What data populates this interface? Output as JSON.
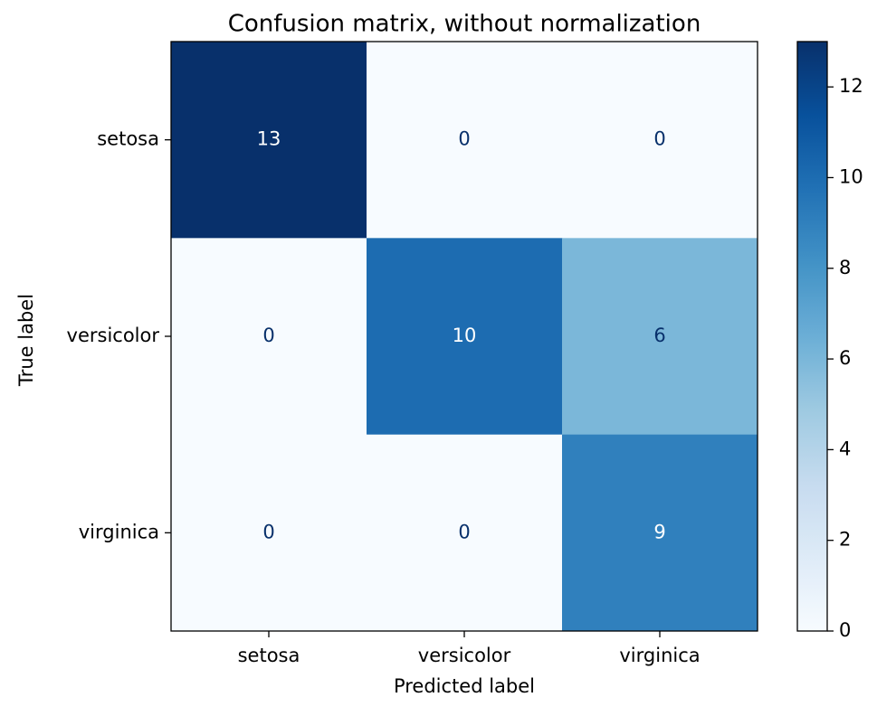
{
  "chart_data": {
    "type": "heatmap",
    "title": "Confusion matrix, without normalization",
    "x_label": "Predicted label",
    "y_label": "True label",
    "x_categories": [
      "setosa",
      "versicolor",
      "virginica"
    ],
    "y_categories": [
      "setosa",
      "versicolor",
      "virginica"
    ],
    "matrix": [
      [
        13,
        0,
        0
      ],
      [
        0,
        10,
        6
      ],
      [
        0,
        0,
        9
      ]
    ],
    "colormap": "Blues",
    "clim": [
      0,
      13
    ],
    "cticks": [
      0,
      2,
      4,
      6,
      8,
      10,
      12
    ]
  }
}
